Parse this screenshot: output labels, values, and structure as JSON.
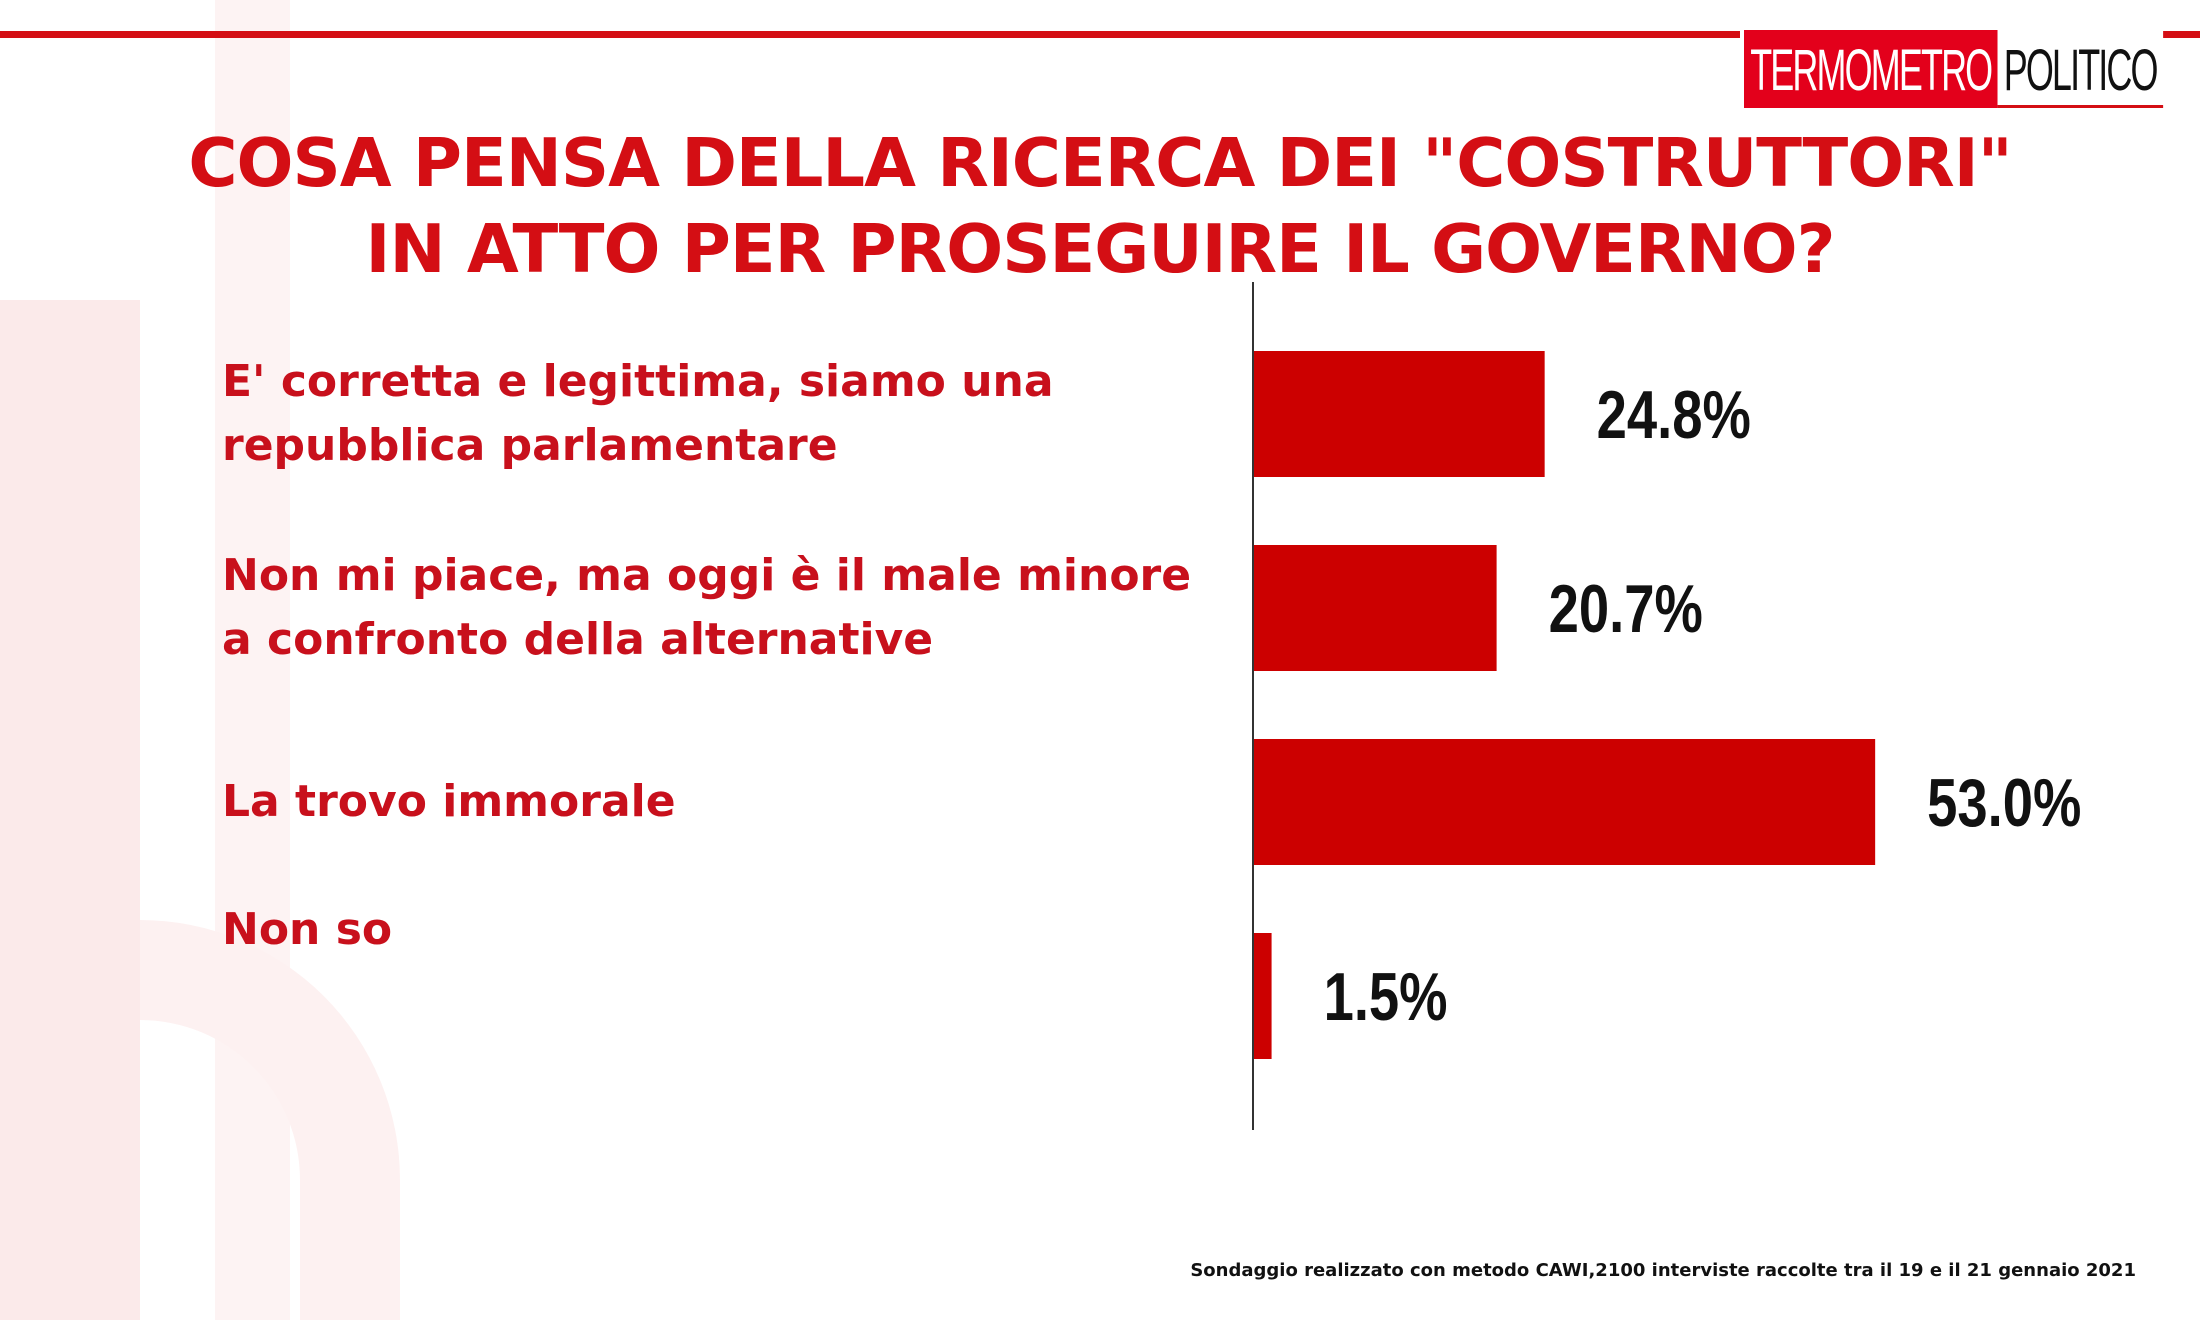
{
  "logo": {
    "left_text": "TERMOMETRO",
    "right_text": "POLITICO"
  },
  "title": {
    "line1": "COSA PENSA DELLA RICERCA DEI \"COSTRUTTORI\"",
    "line2": "IN ATTO PER PROSEGUIRE IL GOVERNO?"
  },
  "colors": {
    "accent": "#d40e14",
    "bar": "#cc0000",
    "label_text": "#c8101c",
    "value_text": "#111111"
  },
  "chart_data": {
    "type": "bar",
    "orientation": "horizontal",
    "title": "COSA PENSA DELLA RICERCA DEI \"COSTRUTTORI\" IN ATTO PER PROSEGUIRE IL GOVERNO?",
    "categories": [
      [
        "E' corretta e legittima, siamo una",
        "repubblica parlamentare"
      ],
      [
        "Non mi piace, ma oggi è il male minore",
        "a confronto della alternative"
      ],
      [
        "La trovo immorale"
      ],
      [
        "Non so"
      ]
    ],
    "values": [
      24.8,
      20.7,
      53.0,
      1.5
    ],
    "value_labels": [
      "24.8%",
      "20.7%",
      "53.0%",
      "1.5%"
    ],
    "unit": "%",
    "xlim": [
      0,
      55
    ],
    "grid": false,
    "legend": "none"
  },
  "footer": {
    "note": "Sondaggio realizzato con metodo CAWI,2100 interviste raccolte tra il 19 e il 21  gennaio  2021"
  }
}
